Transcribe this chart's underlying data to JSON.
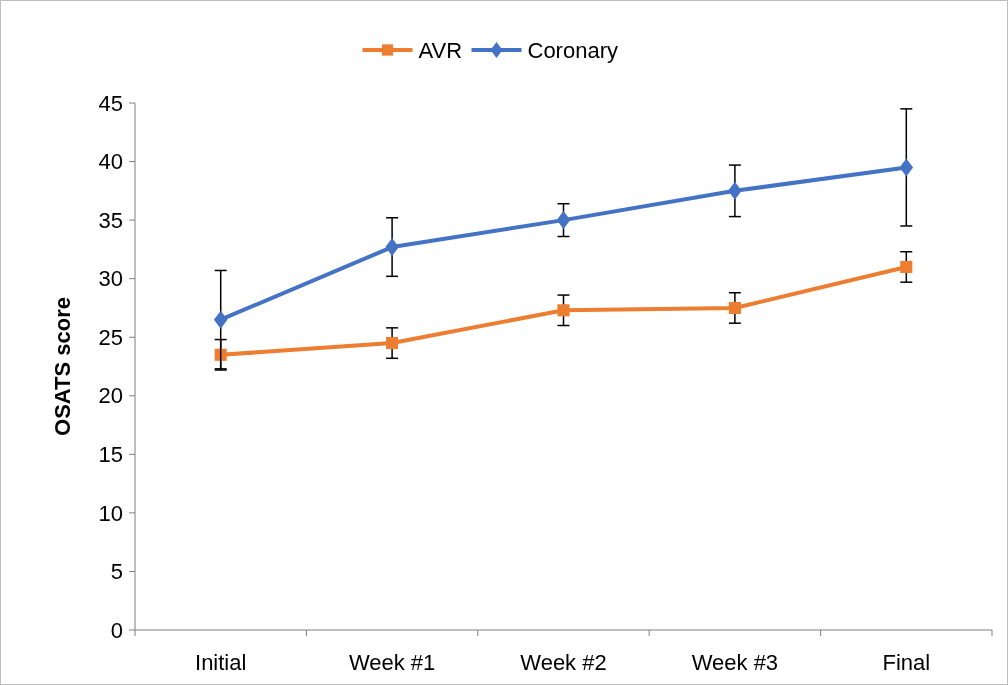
{
  "chart_data": {
    "type": "line",
    "ylabel": "OSATS score",
    "categories": [
      "Initial",
      "Week #1",
      "Week #2",
      "Week #3",
      "Final"
    ],
    "ylim": [
      0,
      45
    ],
    "yticks": [
      0,
      5,
      10,
      15,
      20,
      25,
      30,
      35,
      40,
      45
    ],
    "legend": "top",
    "grid": false,
    "series": [
      {
        "name": "AVR",
        "color": "#ed7d31",
        "marker": "square",
        "values": [
          23.5,
          24.5,
          27.3,
          27.5,
          31
        ],
        "errors": [
          1.3,
          1.3,
          1.3,
          1.3,
          1.3
        ]
      },
      {
        "name": "Coronary",
        "color": "#4472c4",
        "marker": "diamond",
        "values": [
          26.5,
          32.7,
          35,
          37.5,
          39.5
        ],
        "errors": [
          4.2,
          2.5,
          1.4,
          2.2,
          5
        ]
      }
    ]
  }
}
